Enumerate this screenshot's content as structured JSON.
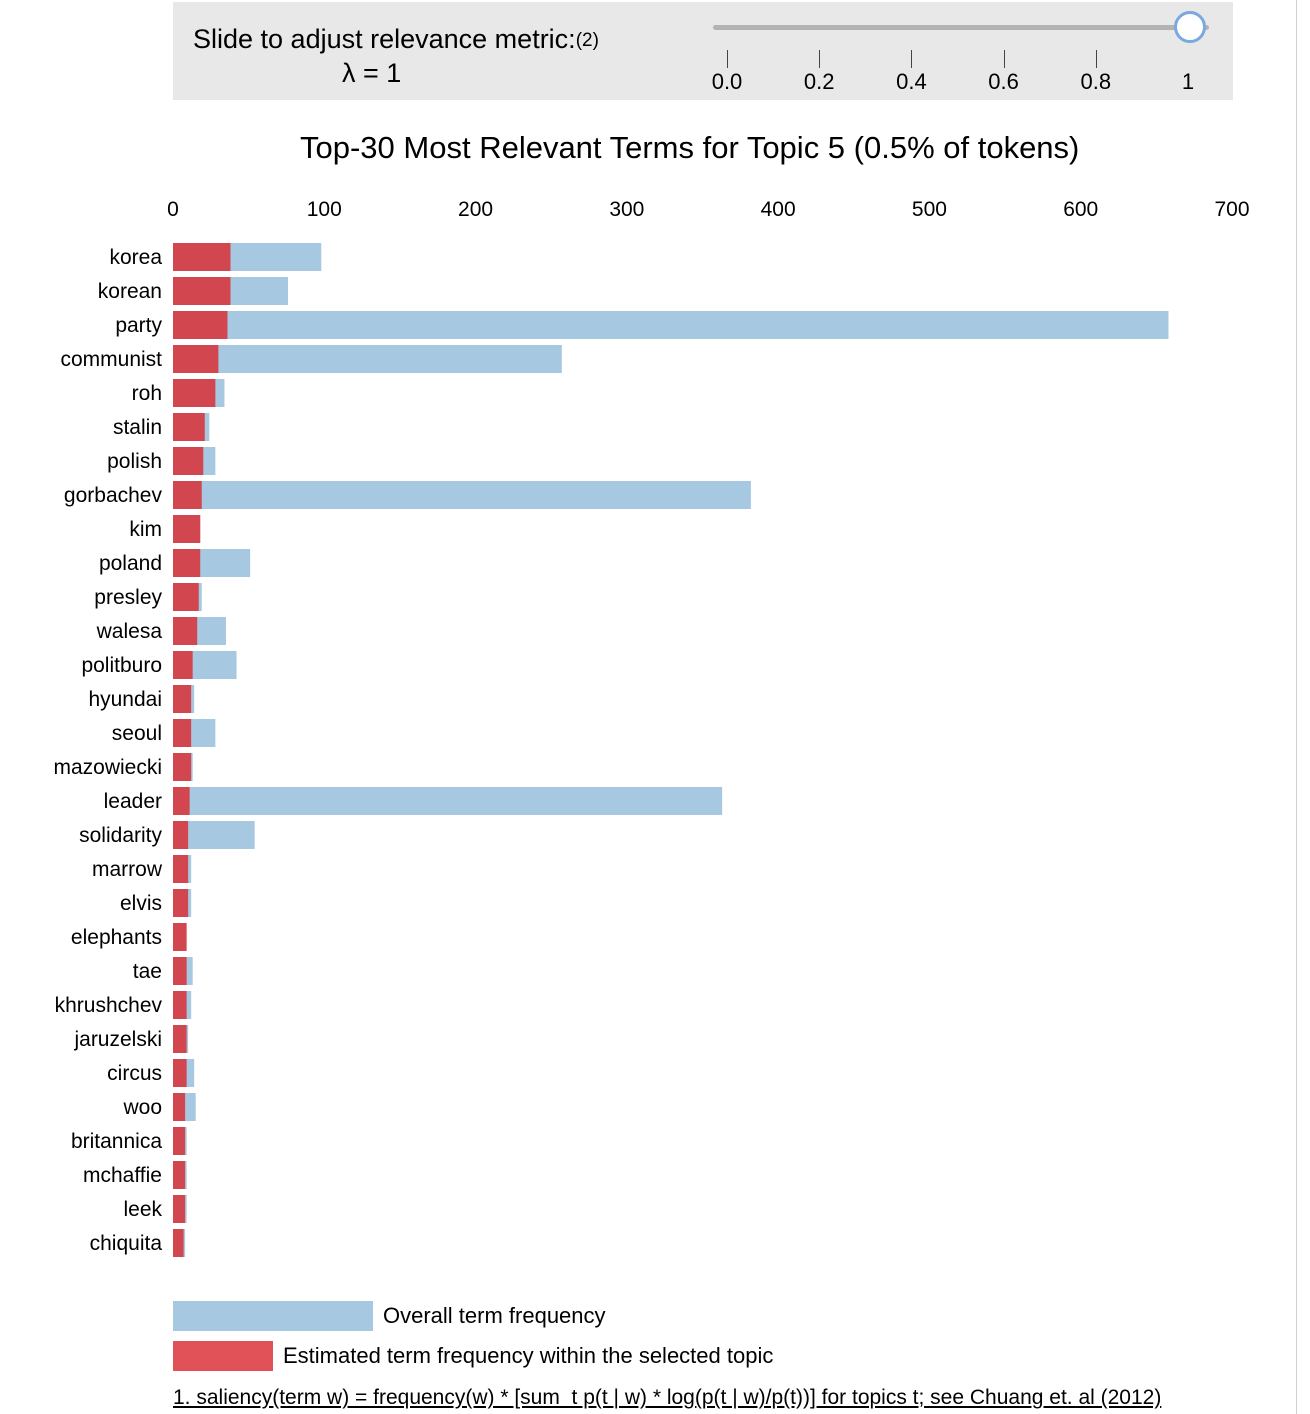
{
  "slider": {
    "label": "Slide to adjust relevance metric:",
    "footnote_ref": "(2)",
    "lambda_text": "λ = 1",
    "value": 1,
    "ticks": [
      "0.0",
      "0.2",
      "0.4",
      "0.6",
      "0.8",
      "1"
    ]
  },
  "legend": {
    "overall": "Overall term frequency",
    "estimated": "Estimated term frequency within the selected topic"
  },
  "footnote": "1. saliency(term w) = frequency(w) * [sum_t p(t | w) * log(p(t | w)/p(t))] for topics t; see Chuang et. al (2012)",
  "colors": {
    "overall": "#a6c8e0",
    "estimated": "#d2464f",
    "estimated_legend": "#e05258"
  },
  "chart_data": {
    "type": "bar",
    "orientation": "horizontal",
    "title": "Top-30 Most Relevant Terms for Topic 5 (0.5% of tokens)",
    "xlim": [
      0,
      700
    ],
    "xticks": [
      0,
      100,
      200,
      300,
      400,
      500,
      600,
      700
    ],
    "categories": [
      "korea",
      "korean",
      "party",
      "communist",
      "roh",
      "stalin",
      "polish",
      "gorbachev",
      "kim",
      "poland",
      "presley",
      "walesa",
      "politburo",
      "hyundai",
      "seoul",
      "mazowiecki",
      "leader",
      "solidarity",
      "marrow",
      "elvis",
      "elephants",
      "tae",
      "khrushchev",
      "jaruzelski",
      "circus",
      "woo",
      "britannica",
      "mchaffie",
      "leek",
      "chiquita"
    ],
    "series": [
      {
        "name": "Overall term frequency",
        "values": [
          98,
          76,
          658,
          257,
          34,
          24,
          28,
          382,
          18,
          51,
          19,
          35,
          42,
          14,
          28,
          13,
          363,
          54,
          12,
          12,
          9,
          13,
          12,
          10,
          14,
          15,
          9,
          9,
          9,
          8
        ]
      },
      {
        "name": "Estimated term frequency within the selected topic",
        "values": [
          38,
          38,
          36,
          30,
          28,
          21,
          20,
          19,
          18,
          18,
          17,
          16,
          13,
          12,
          12,
          12,
          11,
          10,
          10,
          10,
          9,
          9,
          9,
          9,
          9,
          8,
          8,
          8,
          8,
          7
        ]
      }
    ]
  }
}
